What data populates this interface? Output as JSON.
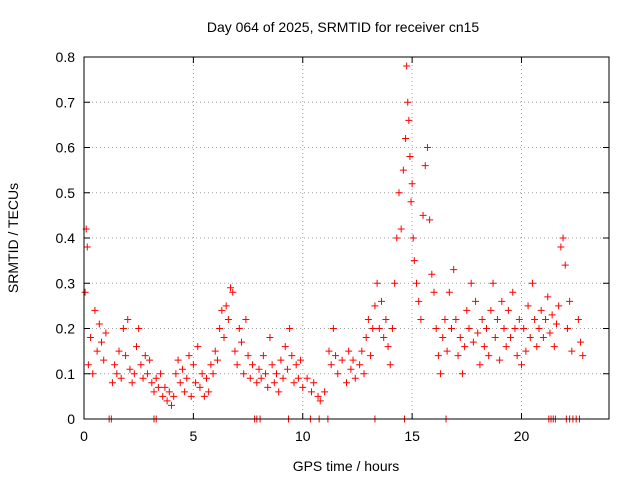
{
  "chart_data": {
    "type": "scatter",
    "title": "Day 064 of 2025, SRMTID for receiver cn15",
    "xlabel": "GPS time / hours",
    "ylabel": "SRMTID / TECUs",
    "xlim": [
      0,
      24
    ],
    "ylim": [
      0,
      0.8
    ],
    "xticks": [
      0,
      5,
      10,
      15,
      20
    ],
    "xtick_labels": [
      "0",
      "5",
      "10",
      "15",
      "20"
    ],
    "yticks": [
      0,
      0.1,
      0.2,
      0.3,
      0.4,
      0.5,
      0.6,
      0.7,
      0.8
    ],
    "ytick_labels": [
      "0",
      "0.1",
      "0.2",
      "0.3",
      "0.4",
      "0.5",
      "0.6",
      "0.7",
      "0.8"
    ],
    "grid": true,
    "marker": "+",
    "color": "#ff0000",
    "series": [
      {
        "name": "SRMTID",
        "points": [
          [
            0.05,
            0.28
          ],
          [
            0.1,
            0.42
          ],
          [
            0.15,
            0.38
          ],
          [
            0.2,
            0.12
          ],
          [
            0.3,
            0.18
          ],
          [
            0.4,
            0.1
          ],
          [
            0.5,
            0.24
          ],
          [
            0.6,
            0.15
          ],
          [
            0.7,
            0.21
          ],
          [
            0.8,
            0.17
          ],
          [
            0.9,
            0.13
          ],
          [
            1.0,
            0.19
          ],
          [
            1.3,
            0.08
          ],
          [
            1.4,
            0.12
          ],
          [
            1.5,
            0.1
          ],
          [
            1.6,
            0.15
          ],
          [
            1.7,
            0.09
          ],
          [
            1.8,
            0.2
          ],
          [
            1.9,
            0.14
          ],
          [
            2.0,
            0.22
          ],
          [
            2.1,
            0.11
          ],
          [
            2.2,
            0.08
          ],
          [
            2.3,
            0.1
          ],
          [
            2.4,
            0.16
          ],
          [
            2.5,
            0.2
          ],
          [
            2.6,
            0.12
          ],
          [
            2.7,
            0.09
          ],
          [
            2.8,
            0.14
          ],
          [
            2.9,
            0.1
          ],
          [
            3.0,
            0.13
          ],
          [
            3.1,
            0.08
          ],
          [
            3.2,
            0.06
          ],
          [
            3.3,
            0.09
          ],
          [
            3.4,
            0.07
          ],
          [
            3.5,
            0.1
          ],
          [
            3.6,
            0.05
          ],
          [
            3.7,
            0.07
          ],
          [
            3.8,
            0.04
          ],
          [
            3.9,
            0.06
          ],
          [
            4.0,
            0.03
          ],
          [
            4.1,
            0.05
          ],
          [
            4.2,
            0.1
          ],
          [
            4.3,
            0.13
          ],
          [
            4.4,
            0.08
          ],
          [
            4.5,
            0.11
          ],
          [
            4.6,
            0.06
          ],
          [
            4.7,
            0.09
          ],
          [
            4.8,
            0.14
          ],
          [
            4.9,
            0.05
          ],
          [
            5.0,
            0.12
          ],
          [
            5.1,
            0.08
          ],
          [
            5.2,
            0.16
          ],
          [
            5.3,
            0.07
          ],
          [
            5.4,
            0.1
          ],
          [
            5.5,
            0.05
          ],
          [
            5.6,
            0.09
          ],
          [
            5.7,
            0.06
          ],
          [
            5.8,
            0.12
          ],
          [
            5.9,
            0.1
          ],
          [
            6.0,
            0.15
          ],
          [
            6.1,
            0.13
          ],
          [
            6.2,
            0.2
          ],
          [
            6.3,
            0.24
          ],
          [
            6.4,
            0.18
          ],
          [
            6.5,
            0.25
          ],
          [
            6.6,
            0.22
          ],
          [
            6.7,
            0.29
          ],
          [
            6.8,
            0.28
          ],
          [
            6.9,
            0.15
          ],
          [
            7.0,
            0.12
          ],
          [
            7.1,
            0.2
          ],
          [
            7.2,
            0.17
          ],
          [
            7.3,
            0.1
          ],
          [
            7.4,
            0.22
          ],
          [
            7.5,
            0.14
          ],
          [
            7.6,
            0.09
          ],
          [
            7.7,
            0.12
          ],
          [
            7.9,
            0.08
          ],
          [
            8.0,
            0.11
          ],
          [
            8.1,
            0.09
          ],
          [
            8.2,
            0.14
          ],
          [
            8.3,
            0.1
          ],
          [
            8.4,
            0.07
          ],
          [
            8.5,
            0.18
          ],
          [
            8.6,
            0.12
          ],
          [
            8.7,
            0.08
          ],
          [
            8.8,
            0.1
          ],
          [
            8.9,
            0.06
          ],
          [
            9.0,
            0.13
          ],
          [
            9.1,
            0.09
          ],
          [
            9.2,
            0.16
          ],
          [
            9.3,
            0.11
          ],
          [
            9.4,
            0.2
          ],
          [
            9.5,
            0.14
          ],
          [
            9.6,
            0.08
          ],
          [
            9.7,
            0.12
          ],
          [
            9.8,
            0.09
          ],
          [
            9.9,
            0.13
          ],
          [
            10.0,
            0.07
          ],
          [
            10.2,
            0.09
          ],
          [
            10.4,
            0.06
          ],
          [
            10.5,
            0.08
          ],
          [
            10.7,
            0.05
          ],
          [
            10.8,
            0.04
          ],
          [
            11.0,
            0.06
          ],
          [
            11.2,
            0.15
          ],
          [
            11.3,
            0.12
          ],
          [
            11.4,
            0.2
          ],
          [
            11.5,
            0.14
          ],
          [
            11.6,
            0.1
          ],
          [
            11.8,
            0.13
          ],
          [
            12.0,
            0.08
          ],
          [
            12.1,
            0.15
          ],
          [
            12.2,
            0.11
          ],
          [
            12.3,
            0.13
          ],
          [
            12.4,
            0.09
          ],
          [
            12.6,
            0.12
          ],
          [
            12.7,
            0.15
          ],
          [
            12.8,
            0.1
          ],
          [
            12.9,
            0.18
          ],
          [
            13.0,
            0.22
          ],
          [
            13.1,
            0.14
          ],
          [
            13.2,
            0.2
          ],
          [
            13.3,
            0.25
          ],
          [
            13.4,
            0.3
          ],
          [
            13.5,
            0.2
          ],
          [
            13.6,
            0.26
          ],
          [
            13.7,
            0.18
          ],
          [
            13.8,
            0.22
          ],
          [
            13.9,
            0.16
          ],
          [
            14.0,
            0.12
          ],
          [
            14.1,
            0.2
          ],
          [
            14.2,
            0.3
          ],
          [
            14.3,
            0.4
          ],
          [
            14.4,
            0.5
          ],
          [
            14.5,
            0.42
          ],
          [
            14.6,
            0.55
          ],
          [
            14.7,
            0.62
          ],
          [
            14.75,
            0.78
          ],
          [
            14.8,
            0.7
          ],
          [
            14.85,
            0.66
          ],
          [
            14.9,
            0.58
          ],
          [
            14.95,
            0.48
          ],
          [
            15.0,
            0.52
          ],
          [
            15.05,
            0.4
          ],
          [
            15.1,
            0.35
          ],
          [
            15.2,
            0.3
          ],
          [
            15.3,
            0.26
          ],
          [
            15.4,
            0.22
          ],
          [
            15.5,
            0.45
          ],
          [
            15.6,
            0.56
          ],
          [
            15.7,
            0.6
          ],
          [
            15.8,
            0.44
          ],
          [
            15.9,
            0.32
          ],
          [
            16.0,
            0.28
          ],
          [
            16.1,
            0.2
          ],
          [
            16.2,
            0.14
          ],
          [
            16.3,
            0.1
          ],
          [
            16.4,
            0.18
          ],
          [
            16.5,
            0.22
          ],
          [
            16.6,
            0.15
          ],
          [
            16.7,
            0.28
          ],
          [
            16.8,
            0.2
          ],
          [
            16.9,
            0.33
          ],
          [
            17.0,
            0.22
          ],
          [
            17.1,
            0.14
          ],
          [
            17.2,
            0.18
          ],
          [
            17.3,
            0.1
          ],
          [
            17.4,
            0.16
          ],
          [
            17.5,
            0.24
          ],
          [
            17.6,
            0.2
          ],
          [
            17.7,
            0.3
          ],
          [
            17.8,
            0.17
          ],
          [
            17.9,
            0.26
          ],
          [
            18.0,
            0.19
          ],
          [
            18.1,
            0.12
          ],
          [
            18.2,
            0.22
          ],
          [
            18.3,
            0.16
          ],
          [
            18.4,
            0.2
          ],
          [
            18.5,
            0.14
          ],
          [
            18.6,
            0.24
          ],
          [
            18.7,
            0.3
          ],
          [
            18.8,
            0.18
          ],
          [
            18.9,
            0.22
          ],
          [
            19.0,
            0.13
          ],
          [
            19.1,
            0.26
          ],
          [
            19.2,
            0.2
          ],
          [
            19.3,
            0.16
          ],
          [
            19.4,
            0.24
          ],
          [
            19.5,
            0.18
          ],
          [
            19.6,
            0.28
          ],
          [
            19.7,
            0.2
          ],
          [
            19.8,
            0.14
          ],
          [
            19.9,
            0.22
          ],
          [
            20.0,
            0.12
          ],
          [
            20.1,
            0.2
          ],
          [
            20.2,
            0.15
          ],
          [
            20.3,
            0.25
          ],
          [
            20.4,
            0.18
          ],
          [
            20.5,
            0.3
          ],
          [
            20.6,
            0.22
          ],
          [
            20.7,
            0.16
          ],
          [
            20.8,
            0.2
          ],
          [
            20.9,
            0.24
          ],
          [
            21.0,
            0.18
          ],
          [
            21.1,
            0.22
          ],
          [
            21.2,
            0.27
          ],
          [
            21.3,
            0.19
          ],
          [
            21.4,
            0.23
          ],
          [
            21.5,
            0.16
          ],
          [
            21.6,
            0.21
          ],
          [
            21.7,
            0.25
          ],
          [
            21.8,
            0.38
          ],
          [
            21.9,
            0.4
          ],
          [
            22.0,
            0.34
          ],
          [
            22.1,
            0.2
          ],
          [
            22.2,
            0.26
          ],
          [
            22.3,
            0.15
          ],
          [
            22.6,
            0.22
          ],
          [
            22.7,
            0.17
          ],
          [
            22.8,
            0.14
          ]
        ]
      }
    ],
    "zero_markers_x": [
      1.15,
      1.25,
      3.2,
      3.3,
      7.8,
      7.9,
      8.05,
      9.35,
      10.35,
      10.75,
      11.15,
      13.3,
      14.65,
      16.55,
      21.25,
      21.35,
      21.45,
      21.55,
      22.05,
      22.2,
      22.35,
      22.5,
      22.65
    ]
  }
}
